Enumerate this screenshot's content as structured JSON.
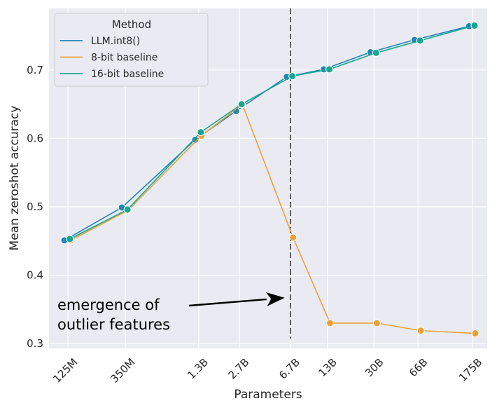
{
  "chart_data": {
    "type": "line",
    "xlabel": "Parameters",
    "ylabel": "Mean zeroshot accuracy",
    "categories": [
      "125M",
      "350M",
      "1.3B",
      "2.7B",
      "6.7B",
      "13B",
      "30B",
      "66B",
      "175B"
    ],
    "ylim": [
      0.293,
      0.79
    ],
    "yticks": [
      0.3,
      0.4,
      0.5,
      0.6,
      0.7
    ],
    "ytick_labels": [
      "0.3",
      "0.4",
      "0.5",
      "0.6",
      "0.7"
    ],
    "grid": true,
    "legend": {
      "title": "Method",
      "position": "top-left"
    },
    "series": [
      {
        "name": "LLM.int8()",
        "color": "#1f86b6",
        "x": [
          0.125,
          0.35,
          1.3,
          2.7,
          6.7,
          13,
          30,
          66,
          175
        ],
        "values": [
          0.451,
          0.499,
          0.598,
          0.64,
          0.69,
          0.701,
          0.726,
          0.744,
          0.764
        ]
      },
      {
        "name": "8-bit baseline",
        "color": "#e9a23b",
        "x": [
          0.125,
          0.35,
          1.3,
          2.7,
          6.7,
          13,
          30,
          66,
          175
        ],
        "values": [
          0.451,
          0.495,
          0.604,
          0.65,
          0.455,
          0.33,
          0.33,
          0.319,
          0.315
        ]
      },
      {
        "name": "16-bit baseline",
        "color": "#17a690",
        "x": [
          0.125,
          0.35,
          1.3,
          2.7,
          6.7,
          13,
          30,
          66,
          175
        ],
        "values": [
          0.453,
          0.496,
          0.609,
          0.65,
          0.691,
          0.701,
          0.725,
          0.743,
          0.765
        ]
      }
    ],
    "vline": {
      "x": 6.7,
      "style": "dashed",
      "color": "#000000"
    },
    "annotation": {
      "lines": [
        "emergence of",
        "outlier features"
      ],
      "arrow_target_x": 6.7,
      "arrow_target_y": 0.367
    }
  }
}
